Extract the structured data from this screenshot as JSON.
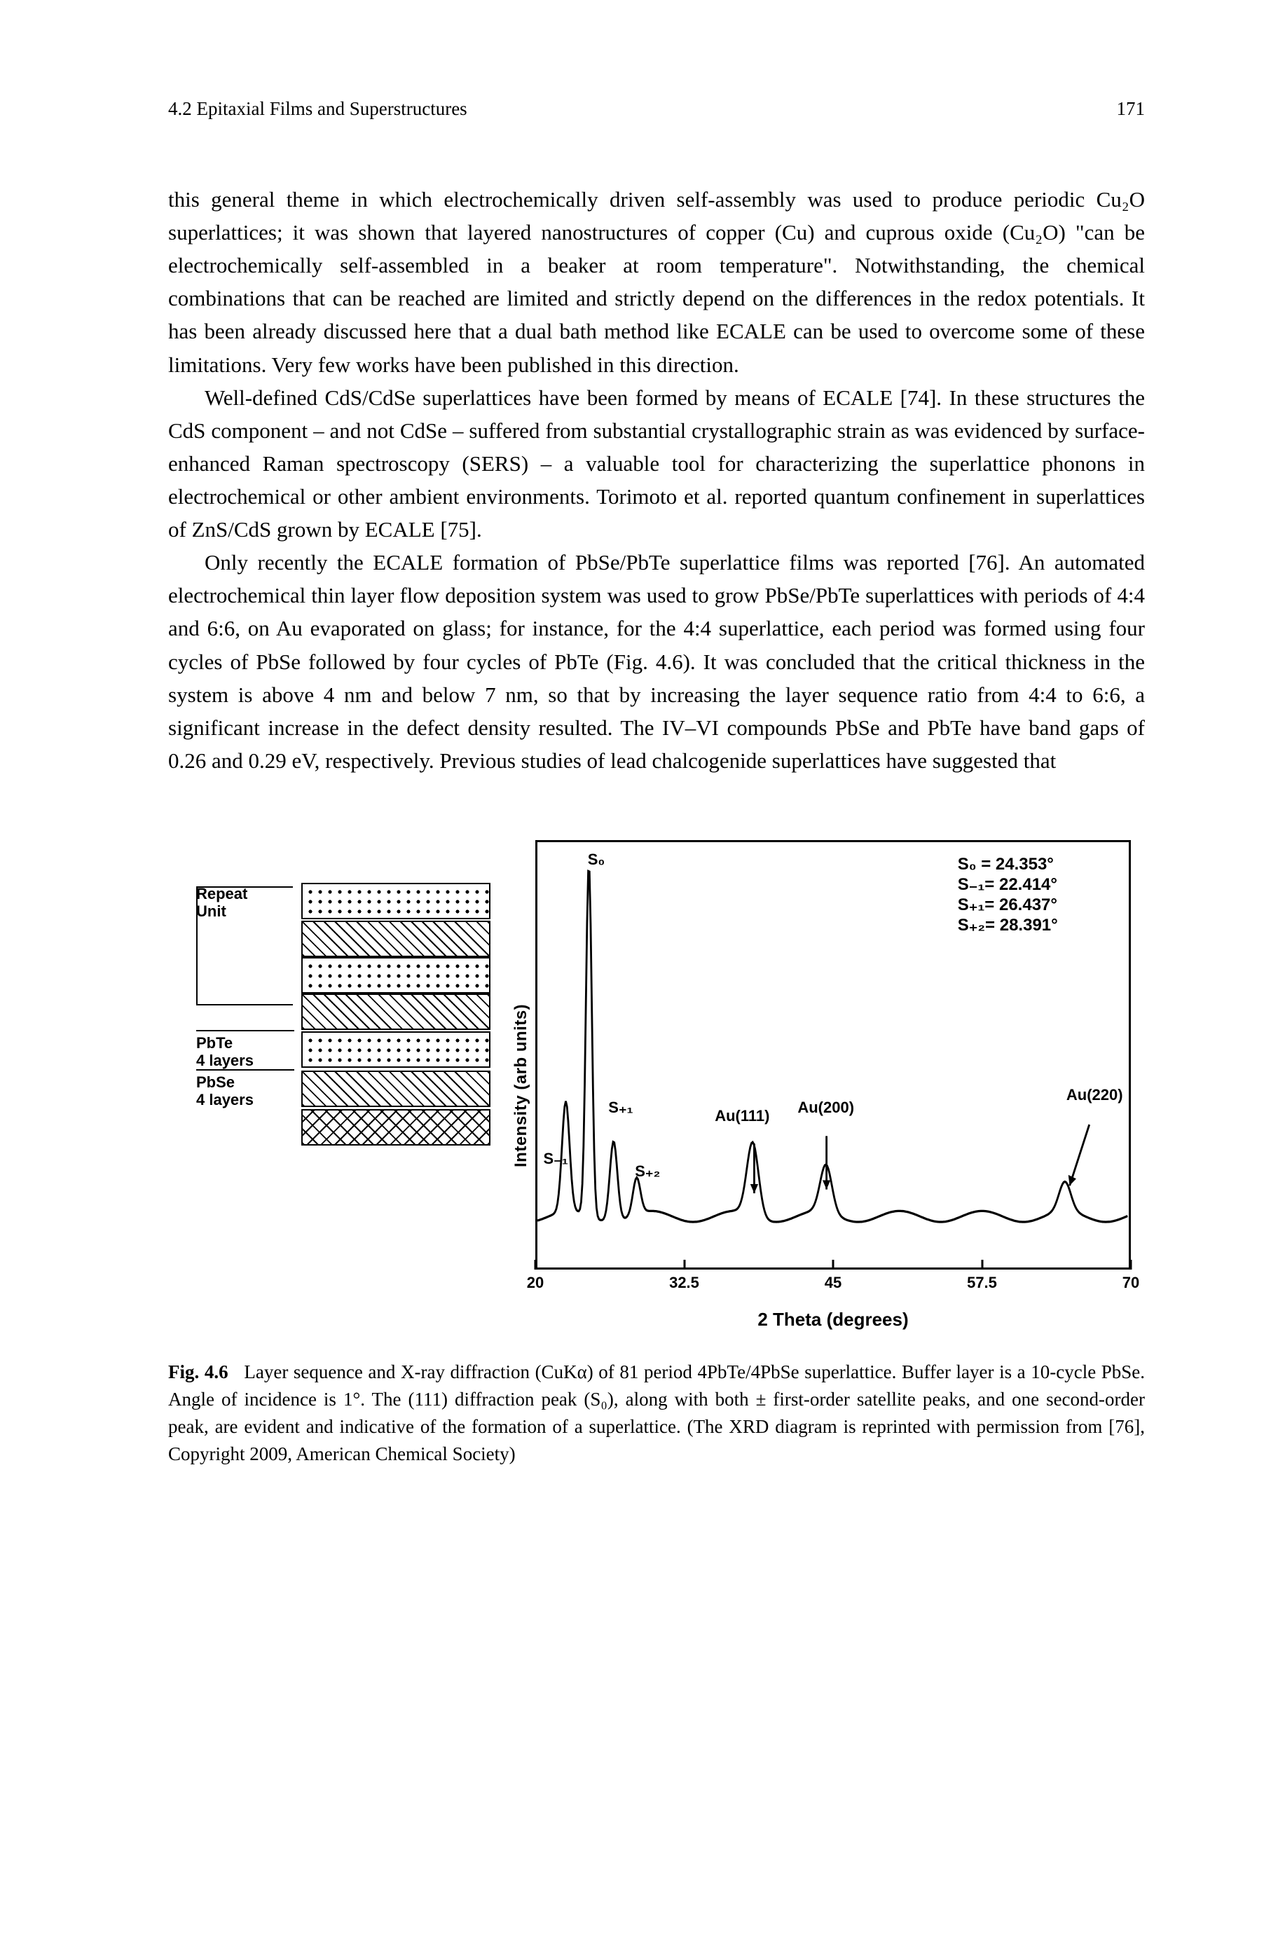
{
  "header": {
    "section": "4.2   Epitaxial Films and Superstructures",
    "page_number": "171"
  },
  "paragraphs": {
    "p1": "this general theme in which electrochemically driven self-assembly was used to produce periodic Cu₂O superlattices; it was shown that layered nanostructures of copper (Cu) and cuprous oxide (Cu₂O) \"can be electrochemically self-assembled in a beaker at room temperature\". Notwithstanding, the chemical combinations that can be reached are limited and strictly depend on the differences in the redox potentials. It has been already discussed here that a dual bath method like ECALE can be used to overcome some of these limitations. Very few works have been published in this direction.",
    "p2": "Well-defined CdS/CdSe superlattices have been formed by means of ECALE [74]. In these structures the CdS component – and not CdSe – suffered from substantial crystallographic strain as was evidenced by surface-enhanced Raman spectroscopy (SERS) – a valuable tool for characterizing the superlattice phonons in electrochemical or other ambient environments. Torimoto et al. reported quantum confinement in superlattices of ZnS/CdS grown by ECALE [75].",
    "p3": "Only recently the ECALE formation of PbSe/PbTe superlattice films was reported [76]. An automated electrochemical thin layer flow deposition system was used to grow PbSe/PbTe superlattices with periods of 4:4 and 6:6, on Au evaporated on glass; for instance, for the 4:4 superlattice, each period was formed using four cycles of PbSe followed by four cycles of PbTe (Fig. 4.6). It was concluded that the critical thickness in the system is above 4 nm and below 7 nm, so that by increasing the layer sequence ratio from 4:4 to 6:6, a significant increase in the defect density resulted. The IV–VI compounds PbSe and PbTe have band gaps of 0.26 and 0.29 eV, respectively. Previous studies of lead chalcogenide superlattices have suggested that"
  },
  "figure": {
    "layer_labels": {
      "repeat": "Repeat\nUnit",
      "pbte": "PbTe\n4 layers",
      "pbse": "PbSe\n4 layers"
    },
    "stack_sequence": [
      "dots",
      "diag",
      "dots",
      "diag",
      "dots",
      "diag",
      "cross"
    ],
    "chart": {
      "type": "xrd-line",
      "x_label": "2 Theta (degrees)",
      "y_label": "Intensity (arb units)",
      "xlim": [
        20,
        70
      ],
      "x_ticks": [
        20,
        32.5,
        45,
        57.5,
        70
      ],
      "background_color": "#ffffff",
      "line_color": "#000000",
      "border_width": 3,
      "peaks": [
        {
          "name": "S-1",
          "x": 22.4,
          "h": 0.3
        },
        {
          "name": "S0",
          "x": 24.35,
          "h": 0.96
        },
        {
          "name": "S+1",
          "x": 26.44,
          "h": 0.22
        },
        {
          "name": "S+2",
          "x": 28.39,
          "h": 0.1
        },
        {
          "name": "Au(111)",
          "x": 38.2,
          "h": 0.2
        },
        {
          "name": "Au(200)",
          "x": 44.4,
          "h": 0.13
        },
        {
          "name": "Au(220)",
          "x": 64.6,
          "h": 0.08
        }
      ],
      "annotations": {
        "s0_top": "S₀",
        "table_lines": [
          "S₀ = 24.353°",
          "S₋₁= 22.414°",
          "S₊₁= 26.437°",
          "S₊₂= 28.391°"
        ],
        "s_minus1": "S₋₁",
        "s_plus1": "S₊₁",
        "s_plus2": "S₊₂",
        "au111": "Au(111)",
        "au200": "Au(200)",
        "au220": "Au(220)"
      }
    }
  },
  "caption": {
    "lead": "Fig. 4.6",
    "text": "Layer sequence and X-ray diffraction (CuKα) of 81 period 4PbTe/4PbSe superlattice. Buffer layer is a 10-cycle PbSe. Angle of incidence is 1°. The (111) diffraction peak (S₀), along with both ± first-order satellite peaks, and one second-order peak, are evident and indicative of the formation of a superlattice. (The XRD diagram is reprinted with permission from [76], Copyright 2009, American Chemical Society)"
  }
}
